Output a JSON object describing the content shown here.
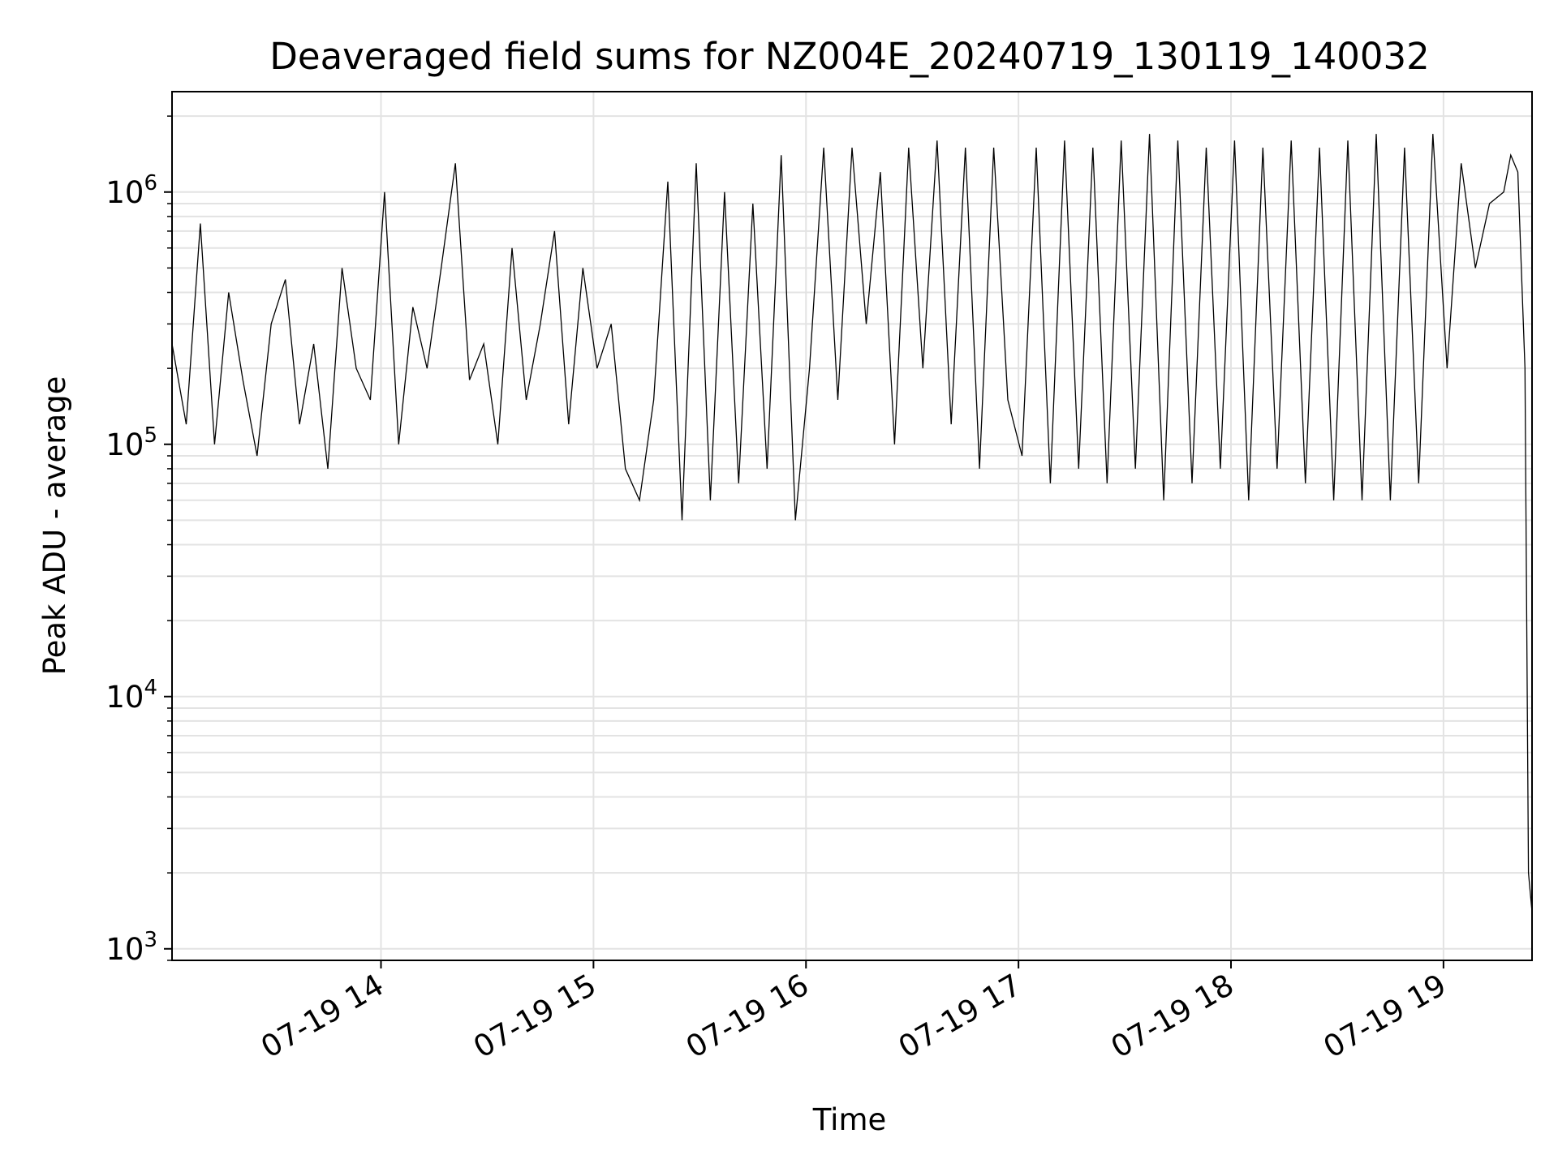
{
  "chart_data": {
    "type": "line",
    "title": "Deaveraged field sums for NZ004E_20240719_130119_140032",
    "xlabel": "Time",
    "ylabel": "Peak ADU - average",
    "y_scale": "log",
    "ylim": [
      900,
      2500000
    ],
    "xlim": [
      "2024-07-19 13:01",
      "2024-07-19 19:25"
    ],
    "grid": true,
    "line_color": "#000000",
    "grid_color": "#e3e3e3",
    "x_ticks": [
      {
        "t": "2024-07-19 14:00",
        "label": "07-19 14"
      },
      {
        "t": "2024-07-19 15:00",
        "label": "07-19 15"
      },
      {
        "t": "2024-07-19 16:00",
        "label": "07-19 16"
      },
      {
        "t": "2024-07-19 17:00",
        "label": "07-19 17"
      },
      {
        "t": "2024-07-19 18:00",
        "label": "07-19 18"
      },
      {
        "t": "2024-07-19 19:00",
        "label": "07-19 19"
      }
    ],
    "y_ticks": [
      {
        "value": 1000,
        "base": "10",
        "exp": "3"
      },
      {
        "value": 10000,
        "base": "10",
        "exp": "4"
      },
      {
        "value": 100000,
        "base": "10",
        "exp": "5"
      },
      {
        "value": 1000000,
        "base": "10",
        "exp": "6"
      }
    ],
    "series": [
      {
        "x": [
          "2024-07-19 13:01",
          "2024-07-19 13:05",
          "2024-07-19 13:09",
          "2024-07-19 13:13",
          "2024-07-19 13:17",
          "2024-07-19 13:21",
          "2024-07-19 13:25",
          "2024-07-19 13:29",
          "2024-07-19 13:33",
          "2024-07-19 13:37",
          "2024-07-19 13:41",
          "2024-07-19 13:45",
          "2024-07-19 13:49",
          "2024-07-19 13:53",
          "2024-07-19 13:57",
          "2024-07-19 14:01",
          "2024-07-19 14:05",
          "2024-07-19 14:09",
          "2024-07-19 14:13",
          "2024-07-19 14:17",
          "2024-07-19 14:21",
          "2024-07-19 14:25",
          "2024-07-19 14:29",
          "2024-07-19 14:33",
          "2024-07-19 14:37",
          "2024-07-19 14:41",
          "2024-07-19 14:45",
          "2024-07-19 14:49",
          "2024-07-19 14:53",
          "2024-07-19 14:57",
          "2024-07-19 15:01",
          "2024-07-19 15:05",
          "2024-07-19 15:09",
          "2024-07-19 15:13",
          "2024-07-19 15:17",
          "2024-07-19 15:21",
          "2024-07-19 15:25",
          "2024-07-19 15:29",
          "2024-07-19 15:33",
          "2024-07-19 15:37",
          "2024-07-19 15:41",
          "2024-07-19 15:45",
          "2024-07-19 15:49",
          "2024-07-19 15:53",
          "2024-07-19 15:57",
          "2024-07-19 16:01",
          "2024-07-19 16:05",
          "2024-07-19 16:09",
          "2024-07-19 16:13",
          "2024-07-19 16:17",
          "2024-07-19 16:21",
          "2024-07-19 16:25",
          "2024-07-19 16:29",
          "2024-07-19 16:33",
          "2024-07-19 16:37",
          "2024-07-19 16:41",
          "2024-07-19 16:45",
          "2024-07-19 16:49",
          "2024-07-19 16:53",
          "2024-07-19 16:57",
          "2024-07-19 17:01",
          "2024-07-19 17:05",
          "2024-07-19 17:09",
          "2024-07-19 17:13",
          "2024-07-19 17:17",
          "2024-07-19 17:21",
          "2024-07-19 17:25",
          "2024-07-19 17:29",
          "2024-07-19 17:33",
          "2024-07-19 17:37",
          "2024-07-19 17:41",
          "2024-07-19 17:45",
          "2024-07-19 17:49",
          "2024-07-19 17:53",
          "2024-07-19 17:57",
          "2024-07-19 18:01",
          "2024-07-19 18:05",
          "2024-07-19 18:09",
          "2024-07-19 18:13",
          "2024-07-19 18:17",
          "2024-07-19 18:21",
          "2024-07-19 18:25",
          "2024-07-19 18:29",
          "2024-07-19 18:33",
          "2024-07-19 18:37",
          "2024-07-19 18:41",
          "2024-07-19 18:45",
          "2024-07-19 18:49",
          "2024-07-19 18:53",
          "2024-07-19 18:57",
          "2024-07-19 19:01",
          "2024-07-19 19:05",
          "2024-07-19 19:09",
          "2024-07-19 19:13",
          "2024-07-19 19:17",
          "2024-07-19 19:19",
          "2024-07-19 19:21",
          "2024-07-19 19:23",
          "2024-07-19 19:24",
          "2024-07-19 19:25"
        ],
        "y": [
          250000,
          120000,
          750000,
          100000,
          400000,
          180000,
          90000,
          300000,
          450000,
          120000,
          250000,
          80000,
          500000,
          200000,
          150000,
          1000000,
          100000,
          350000,
          200000,
          500000,
          1300000,
          180000,
          250000,
          100000,
          600000,
          150000,
          300000,
          700000,
          120000,
          500000,
          200000,
          300000,
          80000,
          60000,
          150000,
          1100000,
          50000,
          1300000,
          60000,
          1000000,
          70000,
          900000,
          80000,
          1400000,
          50000,
          200000,
          1500000,
          150000,
          1500000,
          300000,
          1200000,
          100000,
          1500000,
          200000,
          1600000,
          120000,
          1500000,
          80000,
          1500000,
          150000,
          90000,
          1500000,
          70000,
          1600000,
          80000,
          1500000,
          70000,
          1600000,
          80000,
          1700000,
          60000,
          1600000,
          70000,
          1500000,
          80000,
          1600000,
          60000,
          1500000,
          80000,
          1600000,
          70000,
          1500000,
          60000,
          1600000,
          60000,
          1700000,
          60000,
          1500000,
          70000,
          1700000,
          200000,
          1300000,
          500000,
          900000,
          1000000,
          1400000,
          1200000,
          200000,
          2000,
          1400
        ]
      }
    ]
  }
}
